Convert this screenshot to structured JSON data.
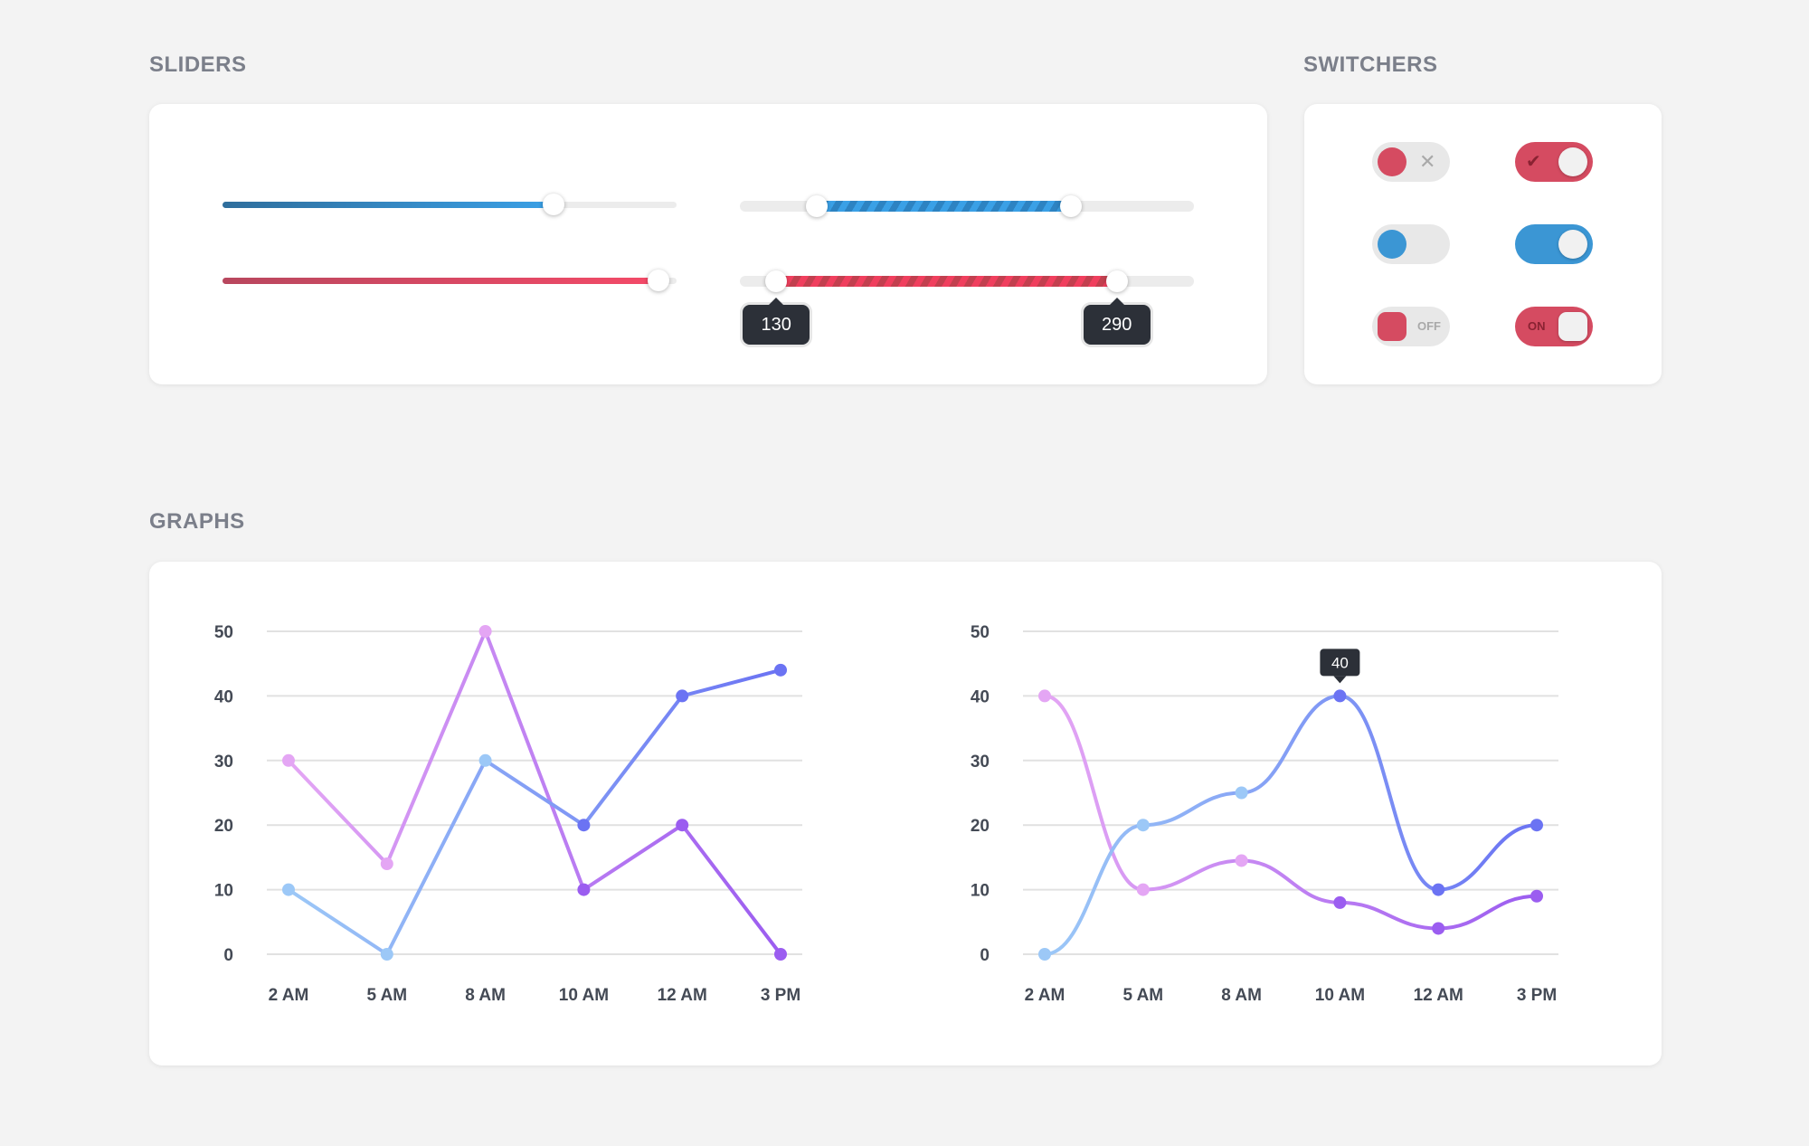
{
  "sections": {
    "sliders_title": "SLIDERS",
    "switchers_title": "SWITCHERS",
    "graphs_title": "GRAPHS"
  },
  "sliders": {
    "single_blue": {
      "value_fraction": 0.73,
      "color": "#3aa0e6"
    },
    "single_red": {
      "value_fraction": 0.96,
      "color": "#f44a68"
    },
    "range_blue": {
      "from_fraction": 0.17,
      "to_fraction": 0.73,
      "color": "#3aa0e6"
    },
    "range_red": {
      "from_fraction": 0.08,
      "to_fraction": 0.83,
      "color": "#f44a68",
      "from_label": "130",
      "to_label": "290"
    }
  },
  "switchers": {
    "items": [
      {
        "state": "off",
        "style": "x-icon",
        "color": "#d54b61"
      },
      {
        "state": "on",
        "style": "check-icon",
        "color": "#d54b61"
      },
      {
        "state": "off",
        "style": "plain",
        "color": "#3b96d4"
      },
      {
        "state": "on",
        "style": "plain",
        "color": "#3b96d4"
      },
      {
        "state": "off",
        "style": "text",
        "color": "#d54b61",
        "label": "OFF"
      },
      {
        "state": "on",
        "style": "text",
        "color": "#d54b61",
        "label": "ON"
      }
    ]
  },
  "chart_data": [
    {
      "type": "line",
      "curve": "straight",
      "categories": [
        "2 AM",
        "5 AM",
        "8 AM",
        "10 AM",
        "12 AM",
        "3 PM"
      ],
      "yticks": [
        "0",
        "10",
        "20",
        "30",
        "40",
        "50"
      ],
      "ylim": [
        0,
        50
      ],
      "grid": true,
      "series": [
        {
          "values": [
            30,
            14,
            50,
            10,
            20,
            0
          ],
          "color_start": "#e4a6f4",
          "color_end": "#9b5df0"
        },
        {
          "values": [
            10,
            0,
            30,
            20,
            40,
            44
          ],
          "color_start": "#9cc8f7",
          "color_end": "#6b73f3"
        }
      ]
    },
    {
      "type": "line",
      "curve": "smooth",
      "categories": [
        "2 AM",
        "5 AM",
        "8 AM",
        "10 AM",
        "12 AM",
        "3 PM"
      ],
      "yticks": [
        "0",
        "10",
        "20",
        "30",
        "40",
        "50"
      ],
      "ylim": [
        0,
        50
      ],
      "grid": true,
      "tooltip": {
        "series": 1,
        "index": 3,
        "label": "40"
      },
      "series": [
        {
          "values": [
            40,
            10,
            14.5,
            8,
            4,
            9
          ],
          "color_start": "#e4a6f4",
          "color_end": "#9b5df0"
        },
        {
          "values": [
            0,
            20,
            25,
            40,
            10,
            20
          ],
          "color_start": "#9cc8f7",
          "color_end": "#6b73f3"
        }
      ]
    }
  ]
}
